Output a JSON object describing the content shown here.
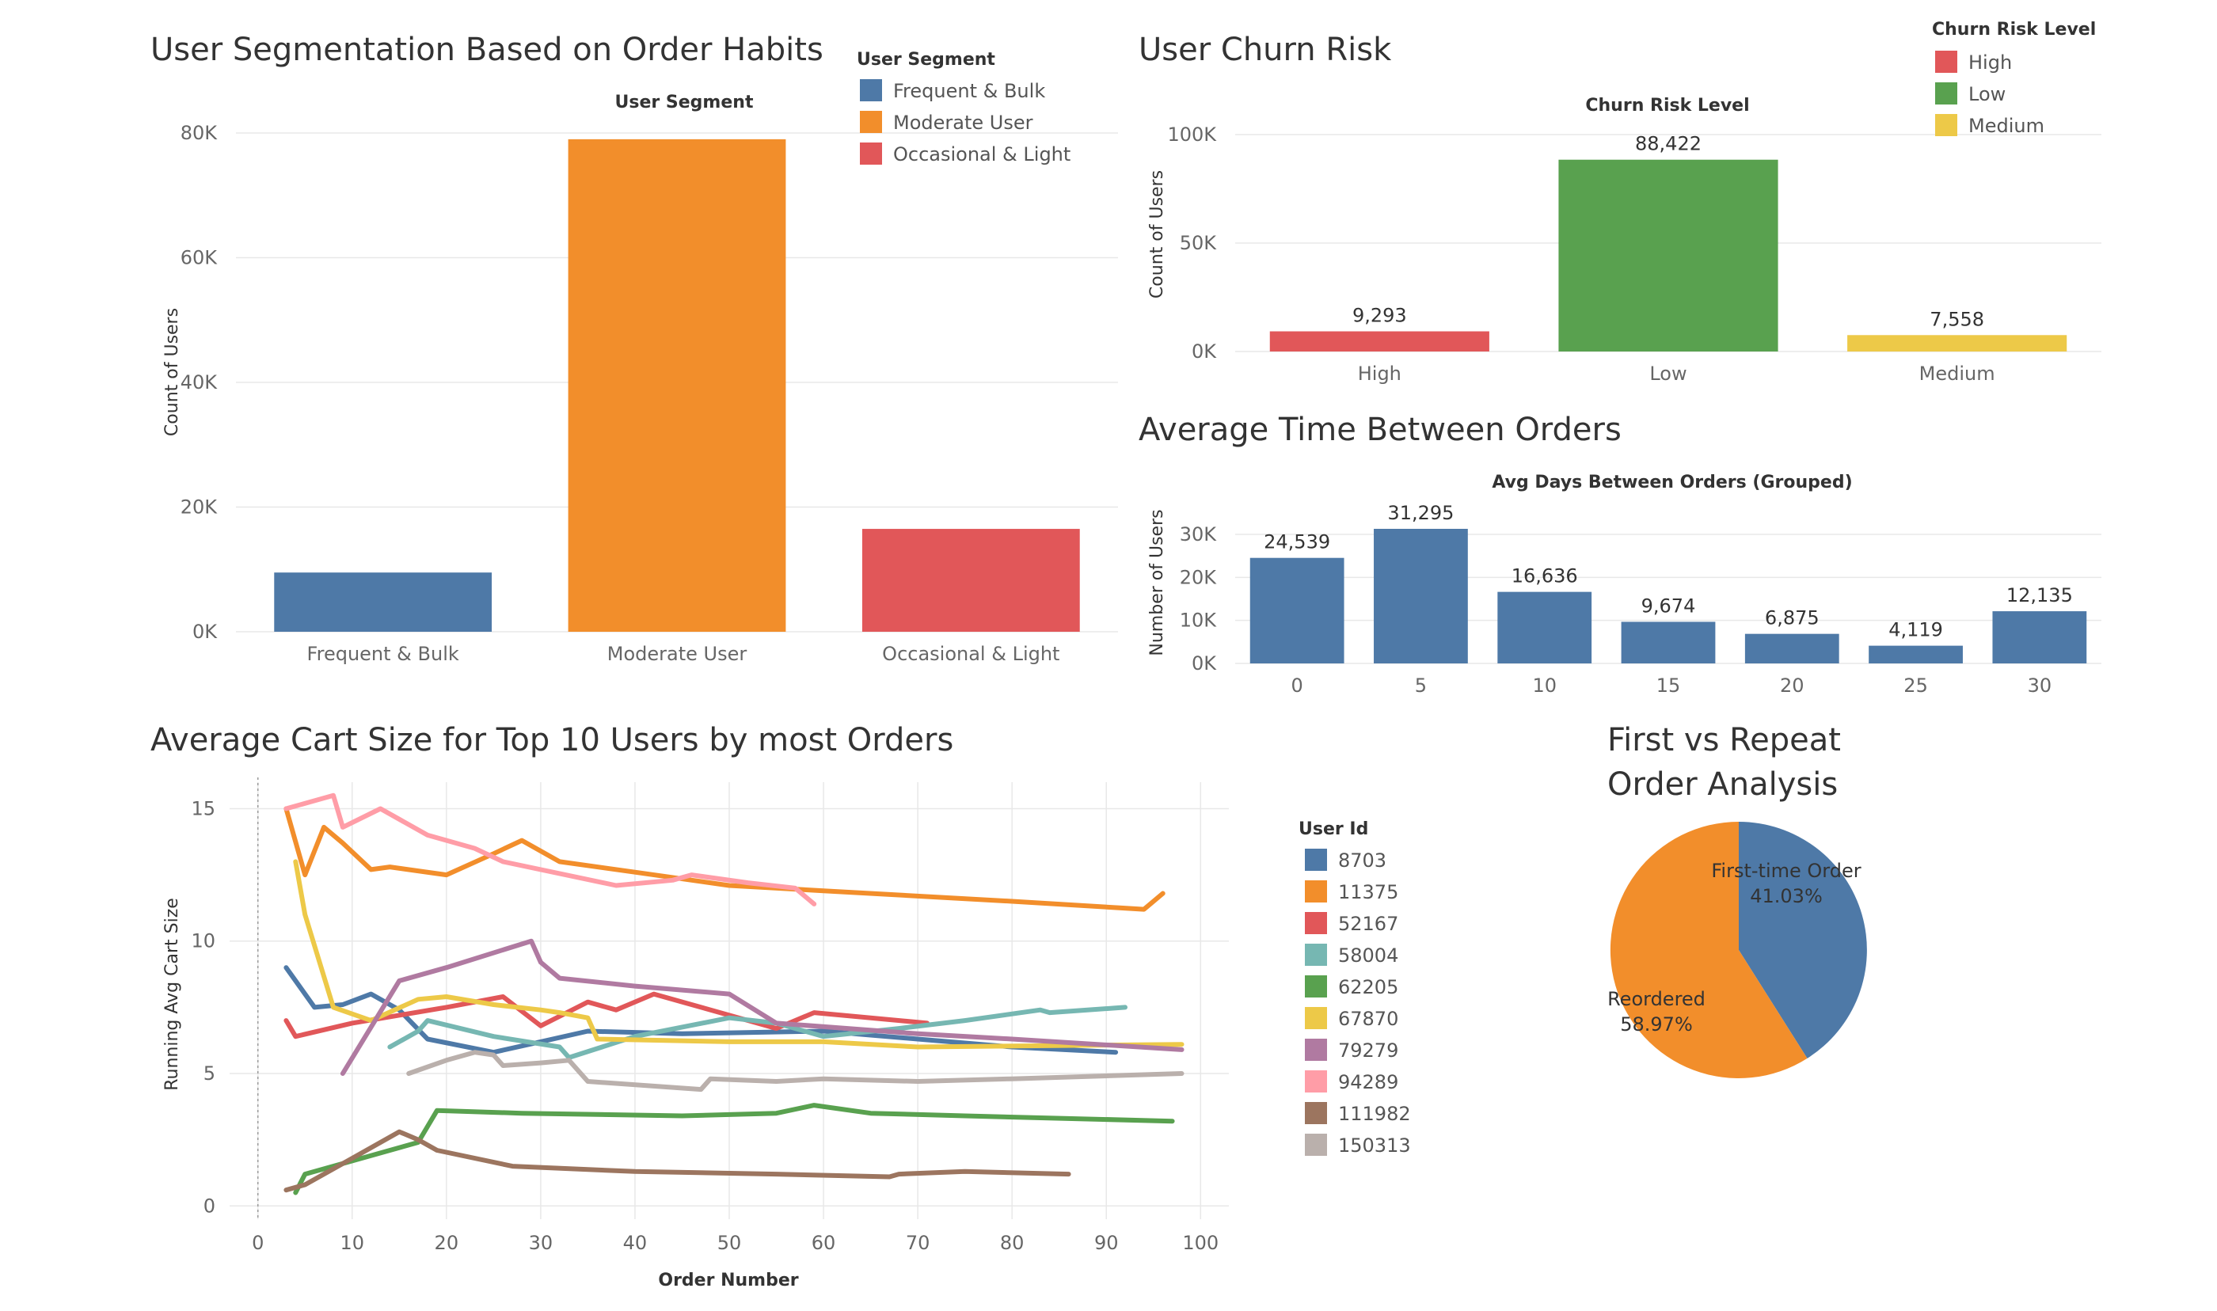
{
  "colors": {
    "blue": "#4e79a7",
    "orange": "#f28e2b",
    "red": "#e15759",
    "green": "#59a14f",
    "yellow": "#edc948",
    "teal": "#76b7b2",
    "purple": "#b07aa1",
    "pink": "#ff9da7",
    "brown": "#9c755f",
    "grey": "#bab0ac"
  },
  "chart_data": [
    {
      "id": "segmentation",
      "type": "bar",
      "title": "User Segmentation Based on Order Habits",
      "header": "User Segment",
      "ylabel": "Count of Users",
      "xlabel": "",
      "categories": [
        "Frequent & Bulk",
        "Moderate User",
        "Occasional & Light"
      ],
      "values": [
        9500,
        79000,
        16500
      ],
      "colors": [
        "#4e79a7",
        "#f28e2b",
        "#e15759"
      ],
      "ylim": [
        0,
        80000
      ],
      "yticks": [
        {
          "v": 0,
          "label": "0K"
        },
        {
          "v": 20000,
          "label": "20K"
        },
        {
          "v": 40000,
          "label": "40K"
        },
        {
          "v": 60000,
          "label": "60K"
        },
        {
          "v": 80000,
          "label": "80K"
        }
      ],
      "legend": {
        "title": "User Segment",
        "placement": "top-right",
        "items": [
          {
            "label": "Frequent & Bulk",
            "color": "#4e79a7"
          },
          {
            "label": "Moderate User",
            "color": "#f28e2b"
          },
          {
            "label": "Occasional & Light",
            "color": "#e15759"
          }
        ]
      },
      "grid": true
    },
    {
      "id": "churn",
      "type": "bar",
      "title": "User Churn Risk",
      "header": "Churn Risk Level",
      "ylabel": "Count of Users",
      "xlabel": "",
      "categories": [
        "High",
        "Low",
        "Medium"
      ],
      "values": [
        9293,
        88422,
        7558
      ],
      "value_labels": [
        "9,293",
        "88,422",
        "7,558"
      ],
      "colors": [
        "#e15759",
        "#59a14f",
        "#edc948"
      ],
      "ylim": [
        0,
        100000
      ],
      "yticks": [
        {
          "v": 0,
          "label": "0K"
        },
        {
          "v": 50000,
          "label": "50K"
        },
        {
          "v": 100000,
          "label": "100K"
        }
      ],
      "legend": {
        "title": "Churn Risk Level",
        "placement": "top-right",
        "items": [
          {
            "label": "High",
            "color": "#e15759"
          },
          {
            "label": "Low",
            "color": "#59a14f"
          },
          {
            "label": "Medium",
            "color": "#edc948"
          }
        ]
      },
      "grid": true
    },
    {
      "id": "timebetween",
      "type": "bar",
      "title": "Average Time Between Orders",
      "header": "Avg Days Between Orders (Grouped)",
      "ylabel": "Number of Users",
      "xlabel": "",
      "categories": [
        "0",
        "5",
        "10",
        "15",
        "20",
        "25",
        "30"
      ],
      "values": [
        24539,
        31295,
        16636,
        9674,
        6875,
        4119,
        12135
      ],
      "value_labels": [
        "24,539",
        "31,295",
        "16,636",
        "9,674",
        "6,875",
        "4,119",
        "12,135"
      ],
      "colors": [
        "#4e79a7"
      ],
      "ylim": [
        0,
        31295
      ],
      "yticks": [
        {
          "v": 0,
          "label": "0K"
        },
        {
          "v": 10000,
          "label": "10K"
        },
        {
          "v": 20000,
          "label": "20K"
        },
        {
          "v": 30000,
          "label": "30K"
        }
      ],
      "grid": true
    },
    {
      "id": "cartsize",
      "type": "line",
      "title": "Average Cart Size for Top 10 Users by most Orders",
      "xlabel": "Order Number",
      "ylabel": "Running Avg Cart Size",
      "xlim": [
        -3,
        103
      ],
      "ylim": [
        -0.5,
        16
      ],
      "xticks": [
        0,
        10,
        20,
        30,
        40,
        50,
        60,
        70,
        80,
        90,
        100
      ],
      "yticks": [
        0,
        5,
        10,
        15
      ],
      "legend": {
        "title": "User Id",
        "placement": "right"
      },
      "grid": true,
      "series": [
        {
          "name": "8703",
          "color": "#4e79a7",
          "points": [
            [
              3,
              9
            ],
            [
              6,
              7.5
            ],
            [
              9,
              7.6
            ],
            [
              12,
              8
            ],
            [
              15,
              7.4
            ],
            [
              18,
              6.3
            ],
            [
              25,
              5.8
            ],
            [
              30,
              6.2
            ],
            [
              35,
              6.6
            ],
            [
              45,
              6.5
            ],
            [
              60,
              6.6
            ],
            [
              70,
              6.3
            ],
            [
              80,
              6
            ],
            [
              91,
              5.8
            ]
          ]
        },
        {
          "name": "11375",
          "color": "#f28e2b",
          "points": [
            [
              3,
              15
            ],
            [
              5,
              12.5
            ],
            [
              7,
              14.3
            ],
            [
              9,
              13.7
            ],
            [
              12,
              12.7
            ],
            [
              14,
              12.8
            ],
            [
              20,
              12.5
            ],
            [
              25,
              13.3
            ],
            [
              28,
              13.8
            ],
            [
              32,
              13
            ],
            [
              40,
              12.6
            ],
            [
              50,
              12.1
            ],
            [
              60,
              11.9
            ],
            [
              80,
              11.5
            ],
            [
              94,
              11.2
            ],
            [
              96,
              11.8
            ]
          ]
        },
        {
          "name": "52167",
          "color": "#e15759",
          "points": [
            [
              3,
              7
            ],
            [
              4,
              6.4
            ],
            [
              10,
              6.9
            ],
            [
              20,
              7.5
            ],
            [
              26,
              7.9
            ],
            [
              30,
              6.8
            ],
            [
              35,
              7.7
            ],
            [
              38,
              7.4
            ],
            [
              42,
              8
            ],
            [
              50,
              7.2
            ],
            [
              55,
              6.7
            ],
            [
              59,
              7.3
            ],
            [
              71,
              6.9
            ]
          ]
        },
        {
          "name": "58004",
          "color": "#76b7b2",
          "points": [
            [
              14,
              6
            ],
            [
              17,
              6.6
            ],
            [
              18,
              7
            ],
            [
              25,
              6.4
            ],
            [
              32,
              6
            ],
            [
              33,
              5.6
            ],
            [
              40,
              6.4
            ],
            [
              50,
              7.1
            ],
            [
              55,
              6.9
            ],
            [
              60,
              6.4
            ],
            [
              68,
              6.7
            ],
            [
              75,
              7
            ],
            [
              83,
              7.4
            ],
            [
              84,
              7.3
            ],
            [
              92,
              7.5
            ]
          ]
        },
        {
          "name": "62205",
          "color": "#59a14f",
          "points": [
            [
              4,
              0.5
            ],
            [
              5,
              1.2
            ],
            [
              17,
              2.4
            ],
            [
              18,
              3
            ],
            [
              19,
              3.6
            ],
            [
              28,
              3.5
            ],
            [
              45,
              3.4
            ],
            [
              55,
              3.5
            ],
            [
              59,
              3.8
            ],
            [
              65,
              3.5
            ],
            [
              75,
              3.4
            ],
            [
              97,
              3.2
            ]
          ]
        },
        {
          "name": "67870",
          "color": "#edc948",
          "points": [
            [
              4,
              13
            ],
            [
              5,
              11
            ],
            [
              8,
              7.5
            ],
            [
              12,
              7
            ],
            [
              17,
              7.8
            ],
            [
              20,
              7.9
            ],
            [
              25,
              7.6
            ],
            [
              30,
              7.4
            ],
            [
              32,
              7.3
            ],
            [
              35,
              7.1
            ],
            [
              36,
              6.3
            ],
            [
              50,
              6.2
            ],
            [
              60,
              6.2
            ],
            [
              70,
              6
            ],
            [
              98,
              6.1
            ]
          ]
        },
        {
          "name": "79279",
          "color": "#b07aa1",
          "points": [
            [
              9,
              5
            ],
            [
              15,
              8.5
            ],
            [
              20,
              9
            ],
            [
              29,
              10
            ],
            [
              30,
              9.2
            ],
            [
              32,
              8.6
            ],
            [
              40,
              8.3
            ],
            [
              50,
              8
            ],
            [
              55,
              6.9
            ],
            [
              70,
              6.5
            ],
            [
              80,
              6.3
            ],
            [
              98,
              5.9
            ]
          ]
        },
        {
          "name": "94289",
          "color": "#ff9da7",
          "points": [
            [
              3,
              15
            ],
            [
              8,
              15.5
            ],
            [
              9,
              14.3
            ],
            [
              13,
              15
            ],
            [
              18,
              14
            ],
            [
              23,
              13.5
            ],
            [
              26,
              13
            ],
            [
              38,
              12.1
            ],
            [
              44,
              12.3
            ],
            [
              46,
              12.5
            ],
            [
              52,
              12.2
            ],
            [
              57,
              12
            ],
            [
              59,
              11.4
            ]
          ]
        },
        {
          "name": "111982",
          "color": "#9c755f",
          "points": [
            [
              3,
              0.6
            ],
            [
              5,
              0.8
            ],
            [
              10,
              1.8
            ],
            [
              15,
              2.8
            ],
            [
              17,
              2.5
            ],
            [
              19,
              2.1
            ],
            [
              27,
              1.5
            ],
            [
              40,
              1.3
            ],
            [
              55,
              1.2
            ],
            [
              67,
              1.1
            ],
            [
              68,
              1.2
            ],
            [
              75,
              1.3
            ],
            [
              86,
              1.2
            ]
          ]
        },
        {
          "name": "150313",
          "color": "#bab0ac",
          "points": [
            [
              16,
              5
            ],
            [
              20,
              5.5
            ],
            [
              23,
              5.8
            ],
            [
              25,
              5.7
            ],
            [
              26,
              5.3
            ],
            [
              30,
              5.4
            ],
            [
              33,
              5.5
            ],
            [
              35,
              4.7
            ],
            [
              47,
              4.4
            ],
            [
              48,
              4.8
            ],
            [
              55,
              4.7
            ],
            [
              60,
              4.8
            ],
            [
              70,
              4.7
            ],
            [
              80,
              4.8
            ],
            [
              98,
              5
            ]
          ]
        }
      ]
    },
    {
      "id": "firstrepeat",
      "type": "pie",
      "title_lines": [
        "First vs Repeat",
        "Order Analysis"
      ],
      "slices": [
        {
          "label": "First-time Order",
          "pct_label": "41.03%",
          "value": 41.03,
          "color": "#4e79a7"
        },
        {
          "label": "Reordered",
          "pct_label": "58.97%",
          "value": 58.97,
          "color": "#f28e2b"
        }
      ]
    }
  ]
}
